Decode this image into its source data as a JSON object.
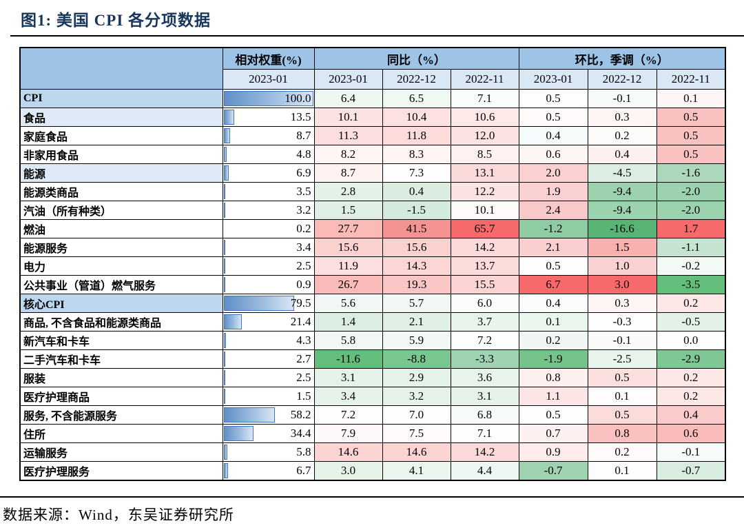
{
  "figure": {
    "title": "图1:  美国 CPI 各分项数据",
    "source": "数据来源：Wind，东吴证券研究所"
  },
  "colors": {
    "title_navy": "#17365D",
    "header_group_bg": "#9DC3E6",
    "header_period_bg": "#DAE8F6",
    "section_row_bg": "#BDD7EE",
    "subsection_row_bg": "#DEEBF7",
    "bar_border": "#4472C4",
    "max_red": "#F8696B",
    "max_green": "#63BE7B"
  },
  "table": {
    "header": {
      "weight_group": "相对权重(%)",
      "yoy_group": "同比（%）",
      "mom_group": "环比，季调（%）",
      "weight_period": "2023-01",
      "periods": [
        "2023-01",
        "2022-12",
        "2022-11"
      ]
    },
    "rows": [
      {
        "label": "CPI",
        "style": "section",
        "weight": "100.0",
        "cells": [
          {
            "v": "6.4",
            "bg": "#EFF7F2"
          },
          {
            "v": "6.5",
            "bg": "#F0F8F3"
          },
          {
            "v": "7.1",
            "bg": "#FAFCFB"
          },
          {
            "v": "0.5",
            "bg": "#FEFEFE"
          },
          {
            "v": "-0.1",
            "bg": "#F7FAF8"
          },
          {
            "v": "0.1",
            "bg": "#FEF6F6"
          }
        ]
      },
      {
        "label": "食品",
        "style": "subsection",
        "weight": "13.5",
        "cells": [
          {
            "v": "10.1",
            "bg": "#FCE3E2"
          },
          {
            "v": "10.4",
            "bg": "#FCE1E0"
          },
          {
            "v": "10.6",
            "bg": "#FDE9E8"
          },
          {
            "v": "0.5",
            "bg": "#FEFAFA"
          },
          {
            "v": "0.3",
            "bg": "#FEF6F5"
          },
          {
            "v": "0.5",
            "bg": "#F9C1BF"
          }
        ]
      },
      {
        "label": "家庭食品",
        "style": "normal",
        "weight": "8.7",
        "cells": [
          {
            "v": "11.3",
            "bg": "#FBDEDD"
          },
          {
            "v": "11.8",
            "bg": "#FBDCDB"
          },
          {
            "v": "12.0",
            "bg": "#FCE3E2"
          },
          {
            "v": "0.4",
            "bg": "#F5FAFA"
          },
          {
            "v": "0.2",
            "bg": "#FEFBFB"
          },
          {
            "v": "0.5",
            "bg": "#F9C1BF"
          }
        ]
      },
      {
        "label": "非家用食品",
        "style": "normal",
        "weight": "4.8",
        "cells": [
          {
            "v": "8.2",
            "bg": "#FEF5F4"
          },
          {
            "v": "8.3",
            "bg": "#FEF4F3"
          },
          {
            "v": "8.5",
            "bg": "#FEF2F1"
          },
          {
            "v": "0.6",
            "bg": "#FEF5F5"
          },
          {
            "v": "0.4",
            "bg": "#FDF1F0"
          },
          {
            "v": "0.5",
            "bg": "#F9C1BF"
          }
        ]
      },
      {
        "label": "能源",
        "style": "subsection",
        "weight": "6.9",
        "cells": [
          {
            "v": "8.7",
            "bg": "#FEF2F1"
          },
          {
            "v": "7.3",
            "bg": "#FEFCFC"
          },
          {
            "v": "13.1",
            "bg": "#FBDBDA"
          },
          {
            "v": "2.0",
            "bg": "#FAD0D1"
          },
          {
            "v": "-4.5",
            "bg": "#DCEEE3"
          },
          {
            "v": "-1.6",
            "bg": "#ABD7BA"
          }
        ]
      },
      {
        "label": "能源类商品",
        "style": "normal",
        "weight": "3.5",
        "cells": [
          {
            "v": "2.8",
            "bg": "#E3F1E8"
          },
          {
            "v": "0.4",
            "bg": "#DBEDE1"
          },
          {
            "v": "12.2",
            "bg": "#FCE2E1"
          },
          {
            "v": "1.9",
            "bg": "#FAD2D3"
          },
          {
            "v": "-9.4",
            "bg": "#9DD2AF"
          },
          {
            "v": "-2.0",
            "bg": "#9DD2AF"
          }
        ]
      },
      {
        "label": "汽油（所有种类）",
        "style": "normal",
        "weight": "3.2",
        "cells": [
          {
            "v": "1.5",
            "bg": "#DFEFE5"
          },
          {
            "v": "-1.5",
            "bg": "#D4EADC"
          },
          {
            "v": "10.1",
            "bg": "#FEFBFB"
          },
          {
            "v": "2.4",
            "bg": "#F9C9CA"
          },
          {
            "v": "-9.4",
            "bg": "#9DD2AF"
          },
          {
            "v": "-2.0",
            "bg": "#9DD2AF"
          }
        ]
      },
      {
        "label": "燃油",
        "style": "normal",
        "weight": "0.2",
        "cells": [
          {
            "v": "27.7",
            "bg": "#F9BAB8"
          },
          {
            "v": "41.5",
            "bg": "#F49492"
          },
          {
            "v": "65.7",
            "bg": "#F8696B"
          },
          {
            "v": "-1.2",
            "bg": "#8FCBA3"
          },
          {
            "v": "-16.6",
            "bg": "#57B475"
          },
          {
            "v": "1.7",
            "bg": "#F8696B"
          }
        ]
      },
      {
        "label": "能源服务",
        "style": "normal",
        "weight": "3.4",
        "cells": [
          {
            "v": "15.6",
            "bg": "#FBD1D0"
          },
          {
            "v": "15.6",
            "bg": "#FBD1D0"
          },
          {
            "v": "14.2",
            "bg": "#FBDAD9"
          },
          {
            "v": "2.1",
            "bg": "#F9CECF"
          },
          {
            "v": "1.5",
            "bg": "#F8B1AF"
          },
          {
            "v": "-1.1",
            "bg": "#C5E3D0"
          }
        ]
      },
      {
        "label": "电力",
        "style": "normal",
        "weight": "2.5",
        "cells": [
          {
            "v": "11.9",
            "bg": "#FCDFDE"
          },
          {
            "v": "14.3",
            "bg": "#FBD6D5"
          },
          {
            "v": "13.7",
            "bg": "#FCDCDB"
          },
          {
            "v": "0.5",
            "bg": "#FEFEFE"
          },
          {
            "v": "1.0",
            "bg": "#FAD2D1"
          },
          {
            "v": "-0.2",
            "bg": "#F3F9F5"
          }
        ]
      },
      {
        "label": "公共事业（管道）燃气服务",
        "style": "normal",
        "weight": "0.9",
        "cells": [
          {
            "v": "26.7",
            "bg": "#F9BCBA"
          },
          {
            "v": "19.3",
            "bg": "#FAC6C5"
          },
          {
            "v": "15.5",
            "bg": "#FBD4D3"
          },
          {
            "v": "6.7",
            "bg": "#F8696B"
          },
          {
            "v": "3.0",
            "bg": "#F8696B"
          },
          {
            "v": "-3.5",
            "bg": "#63BE7B"
          }
        ]
      },
      {
        "label": "核心CPI",
        "style": "section",
        "weight": "79.5",
        "cells": [
          {
            "v": "5.6",
            "bg": "#F1F8F3"
          },
          {
            "v": "5.7",
            "bg": "#F2F8F4"
          },
          {
            "v": "6.0",
            "bg": "#FBFDFC"
          },
          {
            "v": "0.4",
            "bg": "#FAFCFB"
          },
          {
            "v": "0.3",
            "bg": "#FEF6F5"
          },
          {
            "v": "0.2",
            "bg": "#FDE8E7"
          }
        ]
      },
      {
        "label": "商品, 不含食品和能源类商品",
        "style": "normal",
        "weight": "21.4",
        "cells": [
          {
            "v": "1.4",
            "bg": "#DCEEE2"
          },
          {
            "v": "2.1",
            "bg": "#E1F0E6"
          },
          {
            "v": "3.7",
            "bg": "#E9F4EC"
          },
          {
            "v": "0.1",
            "bg": "#EAF5EE"
          },
          {
            "v": "-0.3",
            "bg": "#FCFDFC"
          },
          {
            "v": "-0.5",
            "bg": "#E3F1E8"
          }
        ]
      },
      {
        "label": "新汽车和卡车",
        "style": "normal",
        "weight": "4.3",
        "cells": [
          {
            "v": "5.8",
            "bg": "#F1F8F3"
          },
          {
            "v": "5.9",
            "bg": "#F2F8F4"
          },
          {
            "v": "7.2",
            "bg": "#FEFEFE"
          },
          {
            "v": "0.2",
            "bg": "#F0F7F3"
          },
          {
            "v": "-0.1",
            "bg": "#F8FBF9"
          },
          {
            "v": "0.0",
            "bg": "#FEFEFE"
          }
        ]
      },
      {
        "label": "二手汽车和卡车",
        "style": "normal",
        "weight": "2.7",
        "cells": [
          {
            "v": "-11.6",
            "bg": "#63BE7B"
          },
          {
            "v": "-8.8",
            "bg": "#7AC690"
          },
          {
            "v": "-3.3",
            "bg": "#A0D3B1"
          },
          {
            "v": "-1.9",
            "bg": "#75C28B"
          },
          {
            "v": "-2.5",
            "bg": "#E9F4ED"
          },
          {
            "v": "-2.9",
            "bg": "#7FC794"
          }
        ]
      },
      {
        "label": "服装",
        "style": "normal",
        "weight": "2.5",
        "cells": [
          {
            "v": "3.1",
            "bg": "#E5F2E9"
          },
          {
            "v": "2.9",
            "bg": "#E4F2E9"
          },
          {
            "v": "3.6",
            "bg": "#E8F4EB"
          },
          {
            "v": "0.8",
            "bg": "#FEF0EF"
          },
          {
            "v": "0.5",
            "bg": "#FCE0DF"
          },
          {
            "v": "0.2",
            "bg": "#FDE8E7"
          }
        ]
      },
      {
        "label": "医疗护理商品",
        "style": "normal",
        "weight": "1.5",
        "cells": [
          {
            "v": "3.4",
            "bg": "#E6F3EA"
          },
          {
            "v": "3.2",
            "bg": "#E6F3EA"
          },
          {
            "v": "3.1",
            "bg": "#E5F2E9"
          },
          {
            "v": "1.1",
            "bg": "#FCE5E4"
          },
          {
            "v": "0.1",
            "bg": "#FEFCFC"
          },
          {
            "v": "0.2",
            "bg": "#FDE8E7"
          }
        ]
      },
      {
        "label": "服务, 不含能源服务",
        "style": "normal",
        "weight": "58.2",
        "cells": [
          {
            "v": "7.2",
            "bg": "#FEFDFD"
          },
          {
            "v": "7.0",
            "bg": "#FEFEFE"
          },
          {
            "v": "6.8",
            "bg": "#F7FBF8"
          },
          {
            "v": "0.5",
            "bg": "#FEFEFE"
          },
          {
            "v": "0.5",
            "bg": "#FBDCDB"
          },
          {
            "v": "0.4",
            "bg": "#FACBCA"
          }
        ]
      },
      {
        "label": "住所",
        "style": "normal",
        "weight": "34.4",
        "cells": [
          {
            "v": "7.9",
            "bg": "#FEF8F8"
          },
          {
            "v": "7.5",
            "bg": "#FEFBFA"
          },
          {
            "v": "7.1",
            "bg": "#FEFEFE"
          },
          {
            "v": "0.7",
            "bg": "#FDF0F0"
          },
          {
            "v": "0.8",
            "bg": "#F9C2C0"
          },
          {
            "v": "0.6",
            "bg": "#F9BCBB"
          }
        ]
      },
      {
        "label": "运输服务",
        "style": "normal",
        "weight": "5.8",
        "cells": [
          {
            "v": "14.6",
            "bg": "#FBD4D3"
          },
          {
            "v": "14.6",
            "bg": "#FBD4D3"
          },
          {
            "v": "14.2",
            "bg": "#FBDAD9"
          },
          {
            "v": "0.9",
            "bg": "#FDECEB"
          },
          {
            "v": "0.2",
            "bg": "#FEFBFA"
          },
          {
            "v": "-0.1",
            "bg": "#F6FAF8"
          }
        ]
      },
      {
        "label": "医疗护理服务",
        "style": "normal",
        "weight": "6.7",
        "cells": [
          {
            "v": "3.0",
            "bg": "#E4F2E8"
          },
          {
            "v": "4.1",
            "bg": "#EBF5EE"
          },
          {
            "v": "4.4",
            "bg": "#EDF6F0"
          },
          {
            "v": "-0.7",
            "bg": "#9ED2B0"
          },
          {
            "v": "0.1",
            "bg": "#FEFCFC"
          },
          {
            "v": "-0.7",
            "bg": "#D8ECDF"
          }
        ]
      }
    ]
  }
}
